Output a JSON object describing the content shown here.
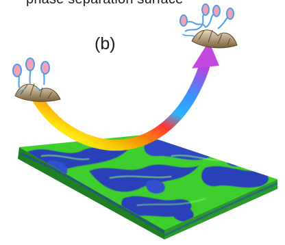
{
  "figure": {
    "title_cut": "phase separation surface",
    "panel_label": "(b)",
    "colors": {
      "surface_green": "#3ecf2e",
      "surface_blue": "#2a3fb8",
      "surface_side": "#1f6f22",
      "arrow_start": "#ffe200",
      "arrow_mid": "#ff2a2a",
      "arrow_end": "#7a3ad6",
      "cell_body": "#f2a3b7",
      "cell_outline": "#4a9de8",
      "shell": "#c9b48a"
    },
    "icons": [
      "cell-cluster-icon",
      "rainbow-arrow-icon",
      "surface-slab"
    ]
  }
}
